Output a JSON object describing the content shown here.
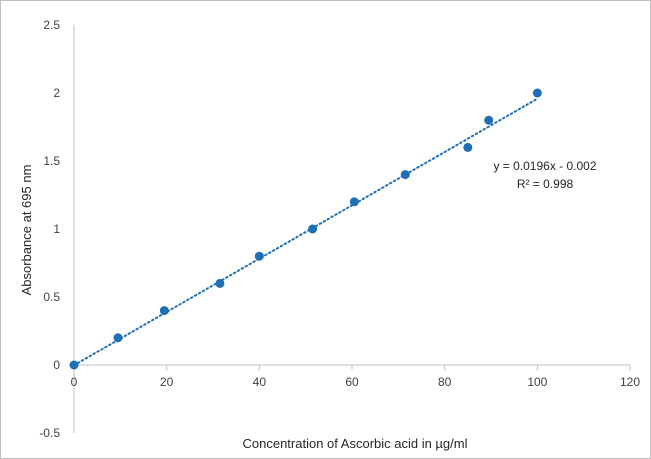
{
  "chart_data": {
    "type": "scatter",
    "xlabel": "Concentration  of Ascorbic acid in µg/ml",
    "ylabel": "Absorbance at 695 nm",
    "xlim": [
      0,
      120
    ],
    "ylim": [
      -0.5,
      2.5
    ],
    "x_ticks": [
      0,
      20,
      40,
      60,
      80,
      100,
      120
    ],
    "y_ticks": [
      -0.5,
      0,
      0.5,
      1,
      1.5,
      2,
      2.5
    ],
    "x_tick_labels": [
      "0",
      "20",
      "40",
      "60",
      "80",
      "100",
      "120"
    ],
    "y_tick_labels": [
      "-0.5",
      "0",
      "0.5",
      "1",
      "1.5",
      "2",
      "2.5"
    ],
    "grid": false,
    "legend": "none",
    "series": [
      {
        "x": [
          0,
          9.5,
          19.5,
          31.5,
          40,
          51.5,
          60.5,
          71.5,
          85,
          89.5,
          100
        ],
        "y": [
          0,
          0.2,
          0.4,
          0.6,
          0.8,
          1.0,
          1.2,
          1.4,
          1.6,
          1.8,
          2.0
        ],
        "color": "#1f6fb5"
      }
    ],
    "trendline": {
      "type": "linear",
      "slope": 0.0196,
      "intercept": -0.002,
      "x_range": [
        0,
        100
      ],
      "style": "dotted",
      "color": "#1f6fb5"
    },
    "annotations": {
      "equation": "y = 0.0196x - 0.002",
      "r_squared": "R² = 0.998"
    }
  }
}
